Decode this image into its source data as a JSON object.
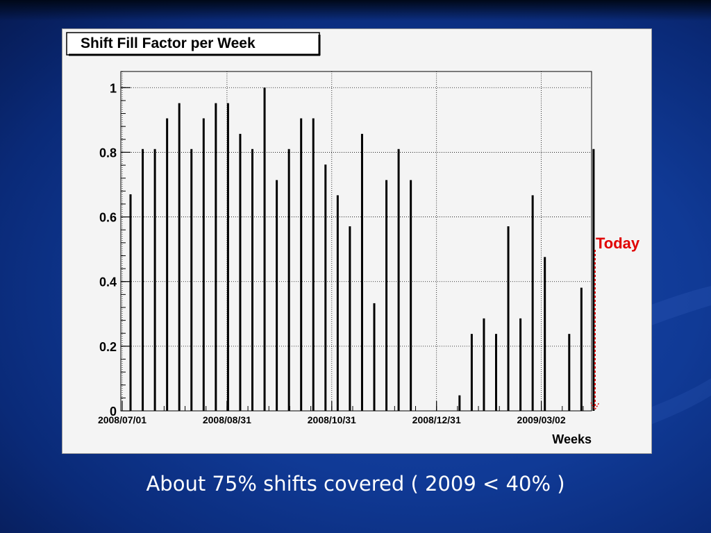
{
  "slide": {
    "caption": "About 75% shifts covered ( 2009 < 40% )"
  },
  "chart_data": {
    "type": "bar",
    "title": "Shift Fill Factor per Week",
    "xlabel": "Weeks",
    "ylabel": "",
    "ylim": [
      0,
      1.0
    ],
    "yticks": [
      0,
      0.2,
      0.4,
      0.6,
      0.8,
      1
    ],
    "ytick_labels": [
      "0",
      "0.2",
      "0.4",
      "0.6",
      "0.8",
      "1"
    ],
    "xtick_labels": [
      "2008/07/01",
      "2008/08/31",
      "2008/10/31",
      "2008/12/31",
      "2009/03/02"
    ],
    "grid": true,
    "annotation": "Today",
    "colors": {
      "bars": "#000000",
      "today_marker": "#e00000",
      "background": "#f4f4f4"
    },
    "values": [
      0.67,
      0.81,
      0.81,
      0.905,
      0.952,
      0.81,
      0.905,
      0.952,
      0.952,
      0.857,
      0.81,
      1.0,
      0.714,
      0.81,
      0.905,
      0.905,
      0.762,
      0.667,
      0.571,
      0.857,
      0.333,
      0.714,
      0.81,
      0.714,
      0,
      0,
      0,
      0.048,
      0.238,
      0.286,
      0.238,
      0.571,
      0.286,
      0.667,
      0.476,
      0,
      0.238,
      0.381,
      0.81
    ]
  }
}
